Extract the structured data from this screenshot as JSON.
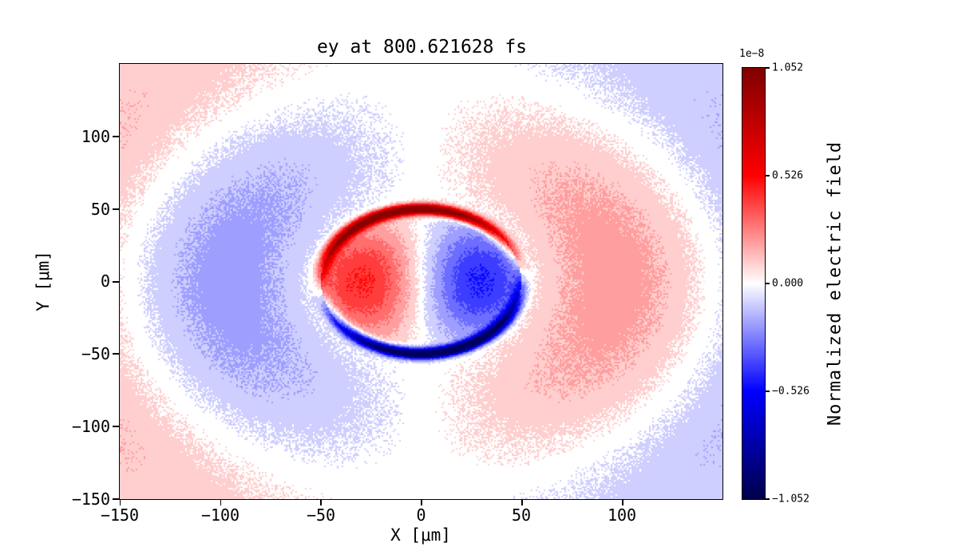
{
  "figure": {
    "title": "ey at 800.621628 fs",
    "xlabel": "X [μm]",
    "ylabel": "Y [μm]"
  },
  "axes": {
    "x_ticks": [
      "−150",
      "−100",
      "−50",
      "0",
      "50",
      "100"
    ],
    "y_ticks": [
      "100",
      "50",
      "0",
      "−50",
      "−100",
      "−150"
    ]
  },
  "colorbar": {
    "label": "Normalized electric field",
    "offset_text": "1e−8",
    "ticks": [
      "1.052",
      "0.526",
      "0.000",
      "−0.526",
      "−1.052"
    ]
  },
  "chart_data": {
    "type": "heatmap",
    "title": "ey at 800.621628 fs",
    "xlabel": "X [μm]",
    "ylabel": "Y [μm]",
    "x_range": [
      -150,
      150
    ],
    "y_range": [
      -150,
      150
    ],
    "x_tick_values": [
      -150,
      -100,
      -50,
      0,
      50,
      100
    ],
    "y_tick_values": [
      100,
      50,
      0,
      -50,
      -100,
      -150
    ],
    "colormap": "seismic",
    "value_scale": 1e-08,
    "vmax_normalized": 1.052,
    "vmin_normalized": -1.052,
    "colorbar_ticks_normalized": [
      1.052,
      0.526,
      0.0,
      -0.526,
      -1.052
    ],
    "colorbar_label": "Normalized electric field",
    "grid": false,
    "legend": "colorbar-right",
    "description": "Snapshot of the ey electric-field component at t = 800.621628 fs. Dipole-like pattern inside a circular structure of radius ~50 μm: positive (red) lobe centered near (−35, 0), negative (blue) lobe near (+35, 0), separated by a white vertical nodal band at x ≈ 0. A thin intense positive (dark red) arc lies along the upper rim of the circle and an intense negative (dark blue) arc along the lower rim. Outside the circle, radiated half-wave lobes alternate sign: negative (blue) lobe around (−100, 0) and positive (red) lobe around (+100, 0) for r ≈ 55–145 μm, reversing beyond r ≈ 145 μm (light red in upper/lower-left corners, light blue in upper/lower-right corners), with white nodal bands along x = 0 and at the radial zero crossings.",
    "model": {
      "circle_radius": 50,
      "inner_amp": 0.46,
      "inner_period": 60,
      "shell_amp": 1.25,
      "shell_sigma": 2.6,
      "shell_phase_deg": 9,
      "outer_amp": 0.23,
      "outer_half_period": 95,
      "outer_decay": 400,
      "contour_levels": 21,
      "noise_amp": 0.035
    }
  }
}
